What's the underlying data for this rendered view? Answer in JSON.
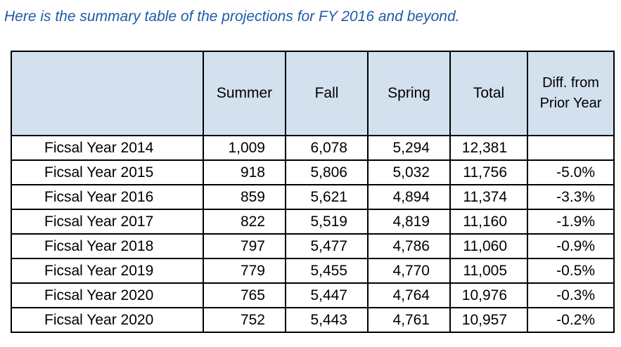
{
  "intro_text": "Here is the summary table of the projections for FY 2016 and beyond.",
  "colors": {
    "intro_text": "#1f5aa6",
    "header_fill": "#d3e0ee",
    "border": "#000000"
  },
  "table": {
    "headers": {
      "label": "",
      "summer": "Summer",
      "fall": "Fall",
      "spring": "Spring",
      "total": "Total",
      "diff": "Diff. from Prior Year"
    },
    "rows": [
      {
        "year": "Ficsal Year 2014",
        "summer": "1,009",
        "fall": "6,078",
        "spring": "5,294",
        "total": "12,381",
        "diff": ""
      },
      {
        "year": "Ficsal Year 2015",
        "summer": "918",
        "fall": "5,806",
        "spring": "5,032",
        "total": "11,756",
        "diff": "-5.0%"
      },
      {
        "year": "Ficsal Year 2016",
        "summer": "859",
        "fall": "5,621",
        "spring": "4,894",
        "total": "11,374",
        "diff": "-3.3%"
      },
      {
        "year": "Ficsal Year 2017",
        "summer": "822",
        "fall": "5,519",
        "spring": "4,819",
        "total": "11,160",
        "diff": "-1.9%"
      },
      {
        "year": "Ficsal Year 2018",
        "summer": "797",
        "fall": "5,477",
        "spring": "4,786",
        "total": "11,060",
        "diff": "-0.9%"
      },
      {
        "year": "Ficsal Year 2019",
        "summer": "779",
        "fall": "5,455",
        "spring": "4,770",
        "total": "11,005",
        "diff": "-0.5%"
      },
      {
        "year": "Ficsal Year 2020",
        "summer": "765",
        "fall": "5,447",
        "spring": "4,764",
        "total": "10,976",
        "diff": "-0.3%"
      },
      {
        "year": "Ficsal Year 2020",
        "summer": "752",
        "fall": "5,443",
        "spring": "4,761",
        "total": "10,957",
        "diff": "-0.2%"
      }
    ]
  }
}
